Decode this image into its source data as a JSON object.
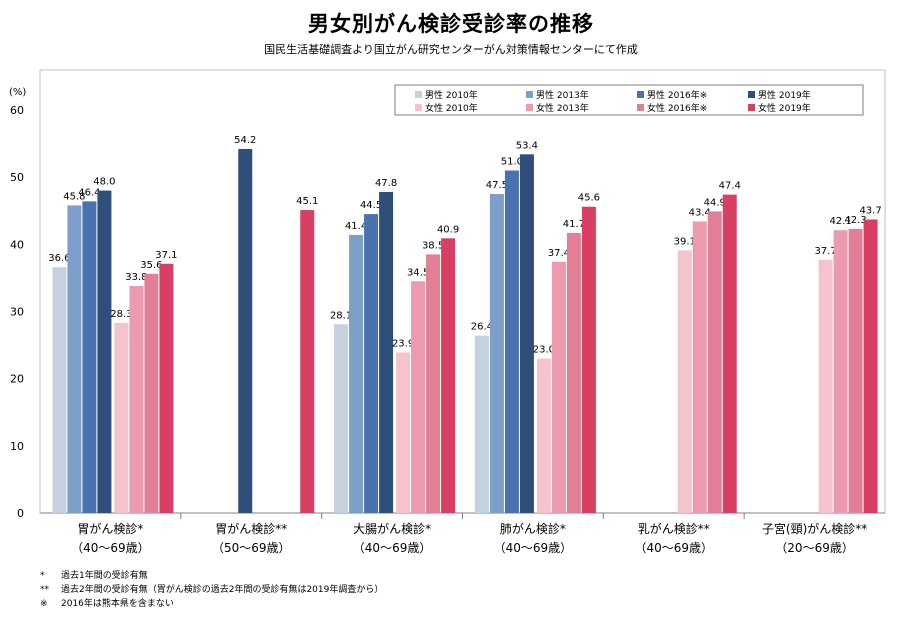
{
  "title": "男女別がん検診受診率の推移",
  "subtitle": "国民生活基礎調査より国立がん研究センターがん対策情報センターにて作成",
  "chart_data": {
    "type": "bar",
    "ylabel": "(%)",
    "ylim": [
      0,
      60
    ],
    "yticks": [
      0,
      10,
      20,
      30,
      40,
      50,
      60
    ],
    "grid": false,
    "legend_position": "top-right",
    "categories": [
      {
        "line1": "胃がん検診*",
        "line2": "（40〜69歳）"
      },
      {
        "line1": "胃がん検診**",
        "line2": "（50〜69歳）"
      },
      {
        "line1": "大腸がん検診*",
        "line2": "（40〜69歳）"
      },
      {
        "line1": "肺がん検診*",
        "line2": "（40〜69歳）"
      },
      {
        "line1": "乳がん検診**",
        "line2": "（40〜69歳）"
      },
      {
        "line1": "子宮(頸)がん検診**",
        "line2": "（20〜69歳）"
      }
    ],
    "series": [
      {
        "name": "男性 2010年",
        "color": "#c5d1e1",
        "values": [
          36.6,
          null,
          28.1,
          26.4,
          null,
          null
        ]
      },
      {
        "name": "男性 2013年",
        "color": "#7f9fcb",
        "values": [
          45.8,
          null,
          41.4,
          47.5,
          null,
          null
        ]
      },
      {
        "name": "男性 2016年※",
        "color": "#4a72ae",
        "values": [
          46.4,
          null,
          44.5,
          51.0,
          null,
          null
        ]
      },
      {
        "name": "男性 2019年",
        "color": "#2f4f7a",
        "values": [
          48.0,
          54.2,
          47.8,
          53.4,
          null,
          null
        ]
      },
      {
        "name": "女性 2010年",
        "color": "#f4c3cd",
        "values": [
          28.3,
          null,
          23.9,
          23.0,
          39.1,
          37.7
        ]
      },
      {
        "name": "女性 2013年",
        "color": "#ec9aaf",
        "values": [
          33.8,
          null,
          34.5,
          37.4,
          43.4,
          42.1
        ]
      },
      {
        "name": "女性 2016年※",
        "color": "#e27e95",
        "values": [
          35.6,
          null,
          38.5,
          41.7,
          44.9,
          42.3
        ]
      },
      {
        "name": "女性 2019年",
        "color": "#d93f63",
        "values": [
          37.1,
          45.1,
          40.9,
          45.6,
          47.4,
          43.7
        ]
      }
    ]
  },
  "notes": [
    {
      "mark": "*",
      "text": "過去1年間の受診有無"
    },
    {
      "mark": "**",
      "text": "過去2年間の受診有無（胃がん検診の過去2年間の受診有無は2019年調査から）"
    },
    {
      "mark": "※",
      "text": "2016年は熊本県を含まない"
    }
  ]
}
